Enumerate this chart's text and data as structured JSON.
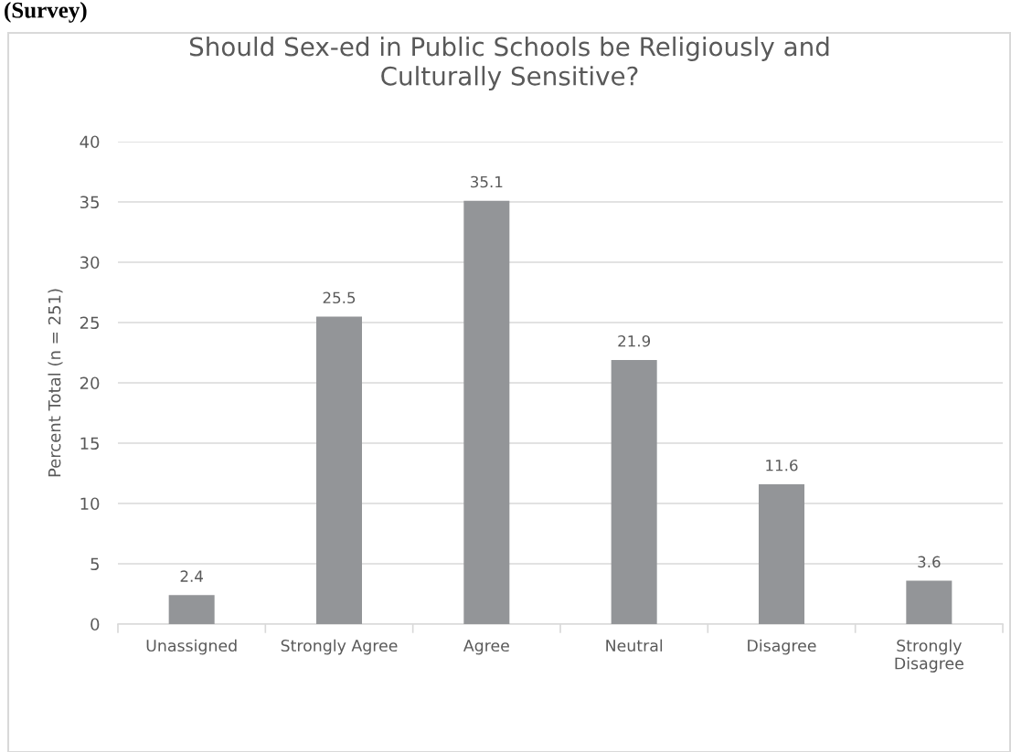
{
  "chart_data": {
    "type": "bar",
    "title": "Should Sex-ed in Public Schools be Religiously and\nCulturally Sensitive?",
    "ylabel": "Percent Total (n = 251)",
    "annotations": [
      "(Survey)"
    ],
    "categories": [
      "Unassigned",
      "Strongly Agree",
      "Agree",
      "Neutral",
      "Disagree",
      "Strongly\nDisagree"
    ],
    "values": [
      2.4,
      25.5,
      35.1,
      21.9,
      11.6,
      3.6
    ],
    "color": "#939598",
    "ylim": [
      0,
      40
    ],
    "yticks": [
      0,
      5,
      10,
      15,
      20,
      25,
      30,
      35,
      40
    ],
    "grid": "y",
    "data_labels": true,
    "legend": false
  }
}
